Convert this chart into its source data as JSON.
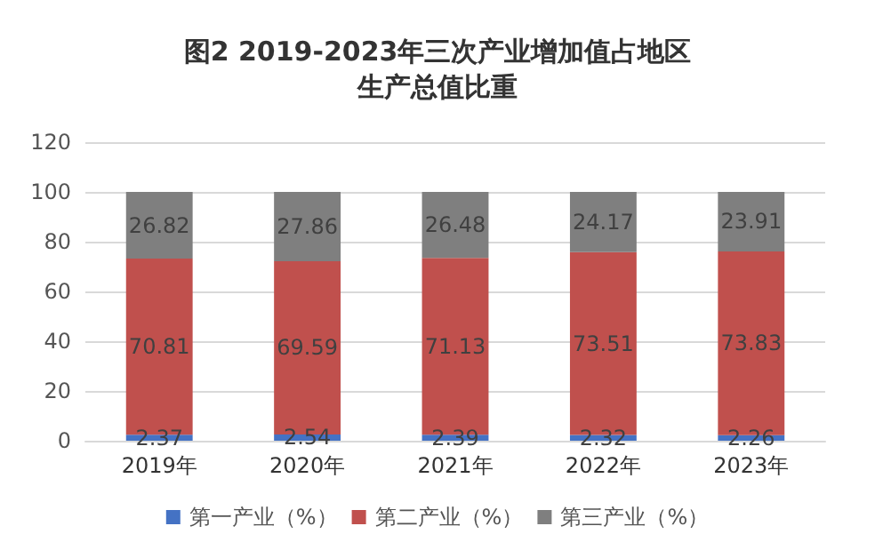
{
  "chart_data": {
    "type": "bar",
    "title": "图2 2019-2023年三次产业增加值占地区生产总值比重",
    "categories": [
      "2019年",
      "2020年",
      "2021年",
      "2022年",
      "2023年"
    ],
    "series": [
      {
        "name": "第一产业（%）",
        "color": "#4472c4",
        "values": [
          2.37,
          2.54,
          2.39,
          2.32,
          2.26
        ]
      },
      {
        "name": "第二产业（%）",
        "color": "#c0504d",
        "values": [
          70.81,
          69.59,
          71.13,
          73.51,
          73.83
        ]
      },
      {
        "name": "第三产业（%）",
        "color": "#7f7f7f",
        "values": [
          26.82,
          27.86,
          26.48,
          24.17,
          23.91
        ]
      }
    ],
    "stacked": true,
    "ylim": [
      0,
      120
    ],
    "yticks": [
      0,
      20,
      40,
      60,
      80,
      100,
      120
    ],
    "grid": "y",
    "legend": "bottom",
    "data_labels": true
  }
}
